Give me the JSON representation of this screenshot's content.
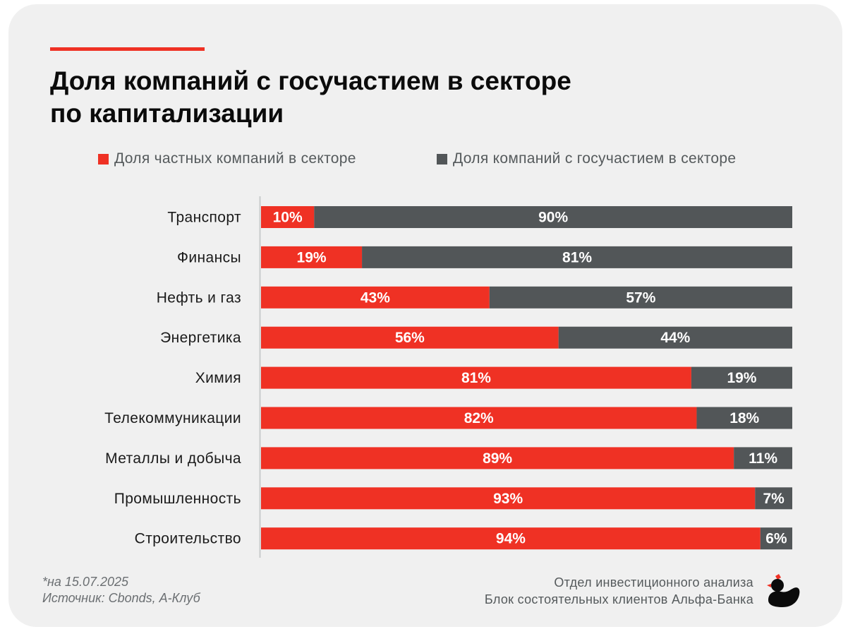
{
  "title_lines": [
    "Доля компаний с госучастием в секторе",
    "по капитализации"
  ],
  "colors": {
    "private": "#ef3124",
    "state": "#525658",
    "background": "#f0f0f0",
    "accent": "#ef3124"
  },
  "legend": {
    "private": "Доля частных компаний в секторе",
    "state": "Доля компаний с госучастием в секторе"
  },
  "chart_data": {
    "type": "bar",
    "orientation": "horizontal",
    "stacked": true,
    "categories": [
      "Транспорт",
      "Финансы",
      "Нефть и газ",
      "Энергетика",
      "Химия",
      "Телекоммуникации",
      "Металлы и добыча",
      "Промышленность",
      "Строительство"
    ],
    "series": [
      {
        "name": "Доля частных компаний в секторе",
        "values": [
          10,
          19,
          43,
          56,
          81,
          82,
          89,
          93,
          94
        ],
        "color": "#ef3124"
      },
      {
        "name": "Доля компаний с госучастием в секторе",
        "values": [
          90,
          81,
          57,
          44,
          19,
          18,
          11,
          7,
          6
        ],
        "color": "#525658"
      }
    ],
    "data_labels": [
      [
        "10%",
        "19%",
        "43%",
        "56%",
        "81%",
        "82%",
        "89%",
        "93%",
        "94%"
      ],
      [
        "90%",
        "81%",
        "57%",
        "44%",
        "19%",
        "18%",
        "11%",
        "7%",
        "6%"
      ]
    ],
    "xlim": [
      0,
      100
    ],
    "grid": false,
    "legend_position": "top"
  },
  "footnote": {
    "date": "*на 15.07.2025",
    "source": "Источник: Cbonds, А-Клуб"
  },
  "credit": {
    "line1": "Отдел инвестиционного анализа",
    "line2": "Блок состоятельных клиентов Альфа-Банка"
  },
  "logo": "duck-logo"
}
